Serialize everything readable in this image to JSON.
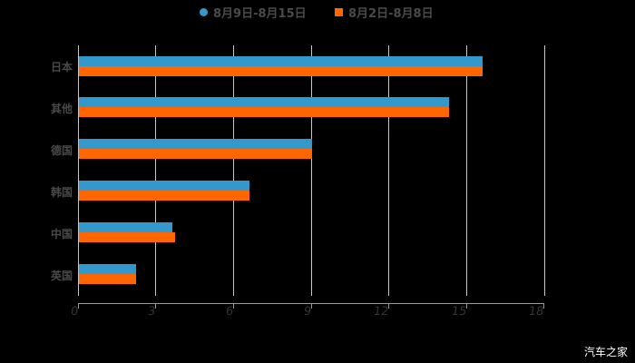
{
  "chart_data": {
    "type": "bar",
    "orientation": "horizontal",
    "title": "",
    "categories": [
      "日本",
      "其他",
      "德国",
      "韩国",
      "中国",
      "英国"
    ],
    "series": [
      {
        "name": "8月9日-8月15日",
        "color": "#3399cc",
        "values": [
          15.6,
          14.3,
          9.0,
          6.6,
          3.6,
          2.2
        ]
      },
      {
        "name": "8月2日-8月8日",
        "color": "#ff6600",
        "values": [
          15.6,
          14.3,
          9.0,
          6.6,
          3.7,
          2.2
        ]
      }
    ],
    "xlabel": "",
    "ylabel": "",
    "xlim": [
      0,
      18
    ],
    "xticks": [
      "0",
      "3",
      "6",
      "9",
      "12",
      "15",
      "18"
    ],
    "grid": true,
    "legend_position": "top"
  },
  "legend": {
    "s1": "8月9日-8月15日",
    "s2": "8月2日-8月8日"
  },
  "categories": [
    "日本",
    "其他",
    "德国",
    "韩国",
    "中国",
    "英国"
  ],
  "xticks": [
    "0",
    "3",
    "6",
    "9",
    "12",
    "15",
    "18"
  ],
  "watermark": "汽车之家"
}
